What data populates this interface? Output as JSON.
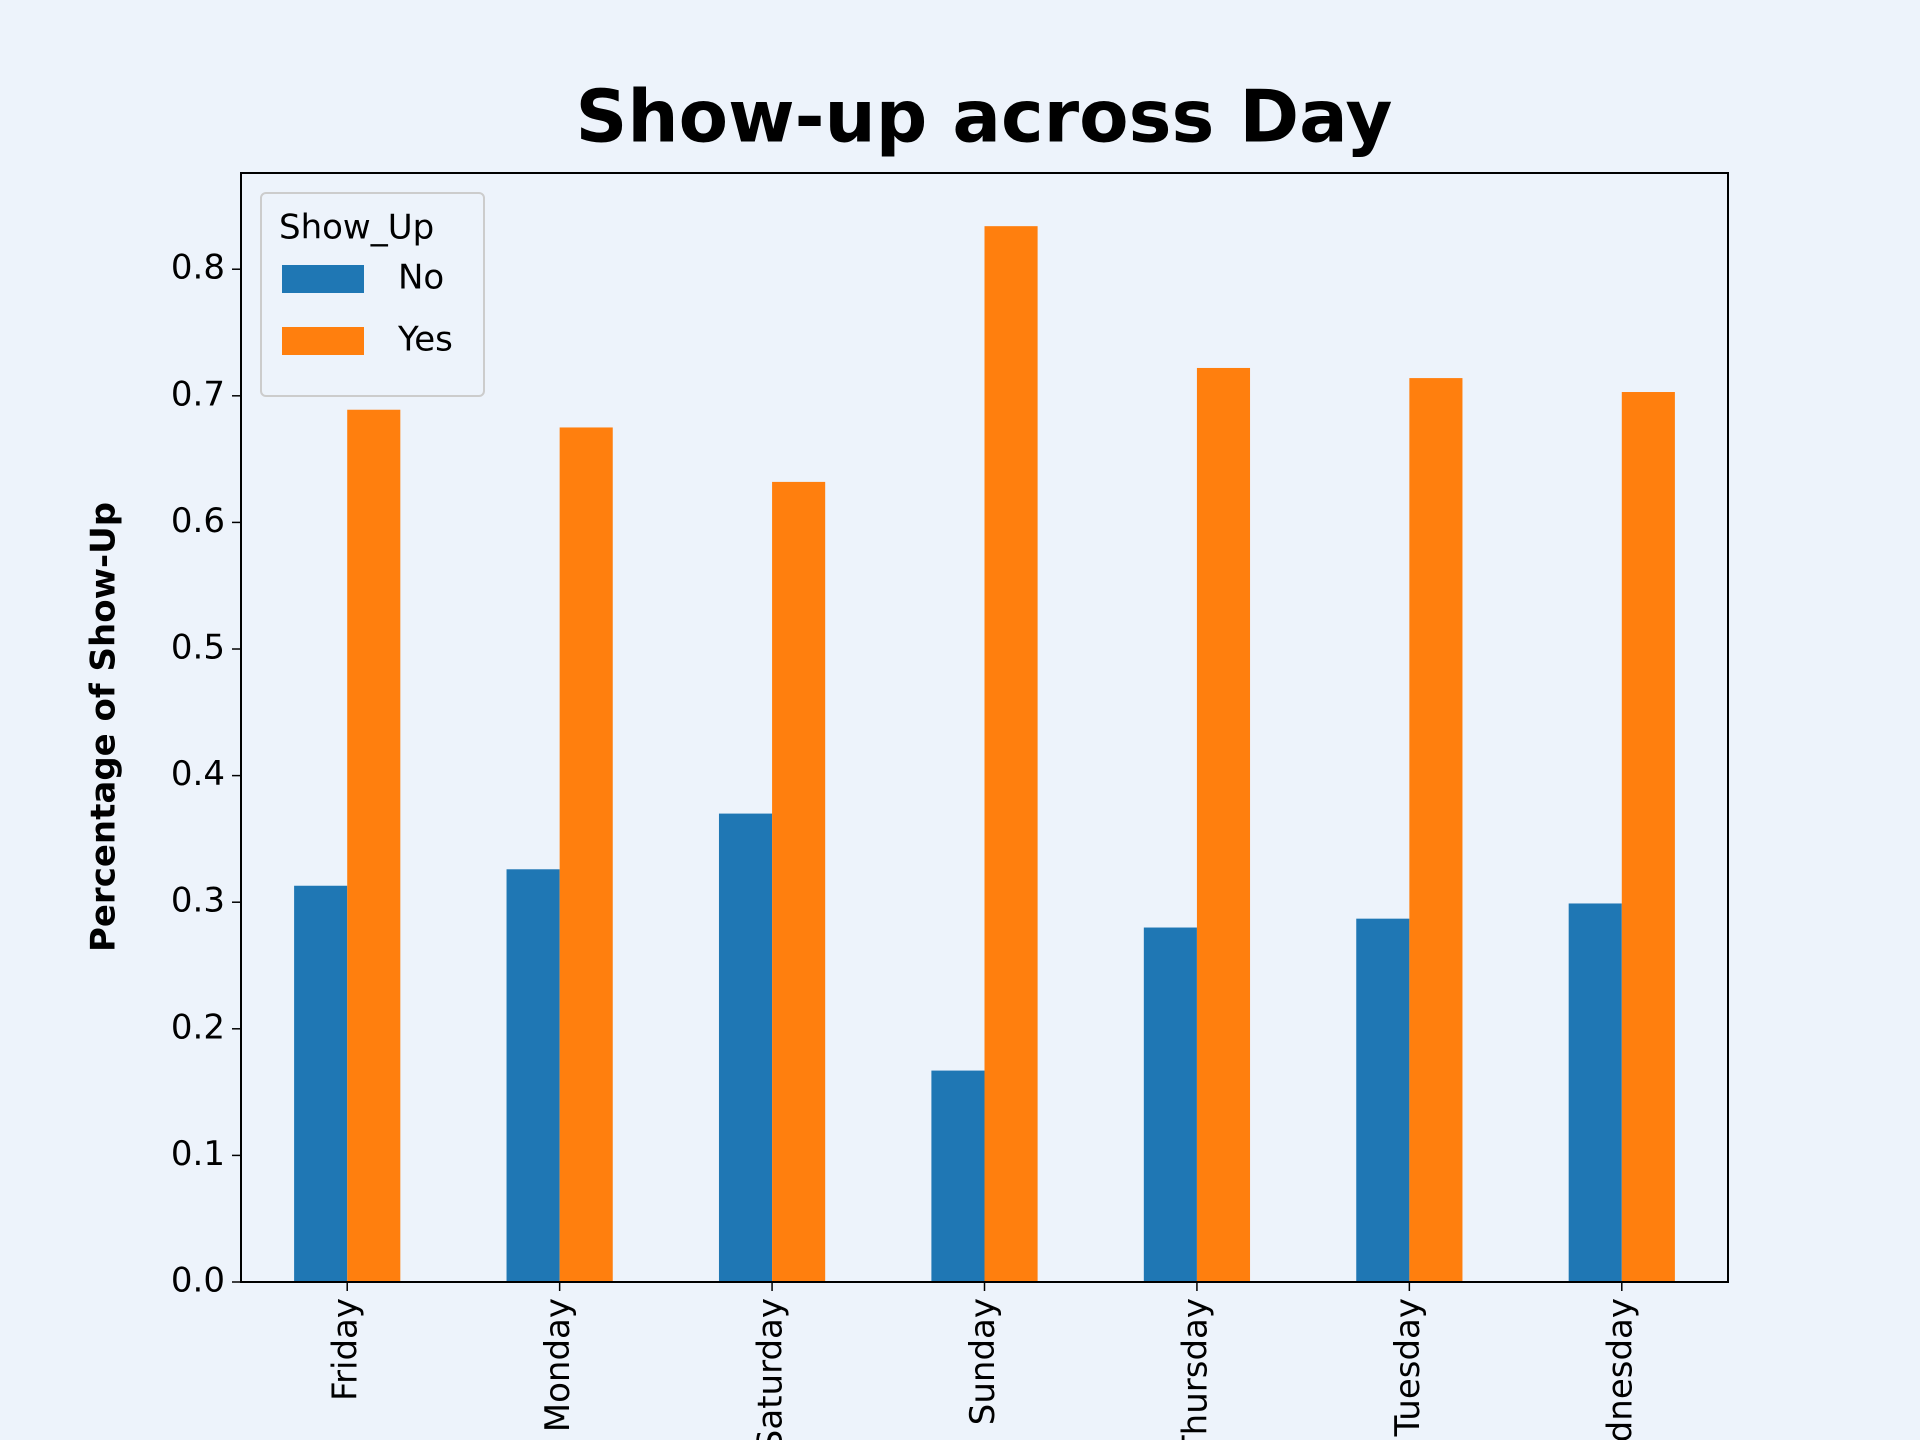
{
  "chart_data": {
    "type": "bar",
    "title": "Show-up across Day",
    "ylabel": "Percentage of Show-Up",
    "categories": [
      "Friday",
      "Monday",
      "Saturday",
      "Sunday",
      "Thursday",
      "Tuesday",
      "Wednesday"
    ],
    "legend_title": "Show_Up",
    "legend": "upper left",
    "series": [
      {
        "name": "No",
        "color": "#1f77b4",
        "values": [
          0.313,
          0.326,
          0.37,
          0.167,
          0.28,
          0.287,
          0.299
        ]
      },
      {
        "name": "Yes",
        "color": "#ff7f0e",
        "values": [
          0.689,
          0.675,
          0.632,
          0.834,
          0.722,
          0.714,
          0.703
        ]
      }
    ],
    "ylim": [
      0,
      0.876
    ],
    "yticks": [
      {
        "value": 0,
        "label": "0.0"
      },
      0.1,
      0.2,
      0.3,
      0.4,
      0.5,
      0.6,
      0.7,
      0.8
    ],
    "grid": false
  }
}
